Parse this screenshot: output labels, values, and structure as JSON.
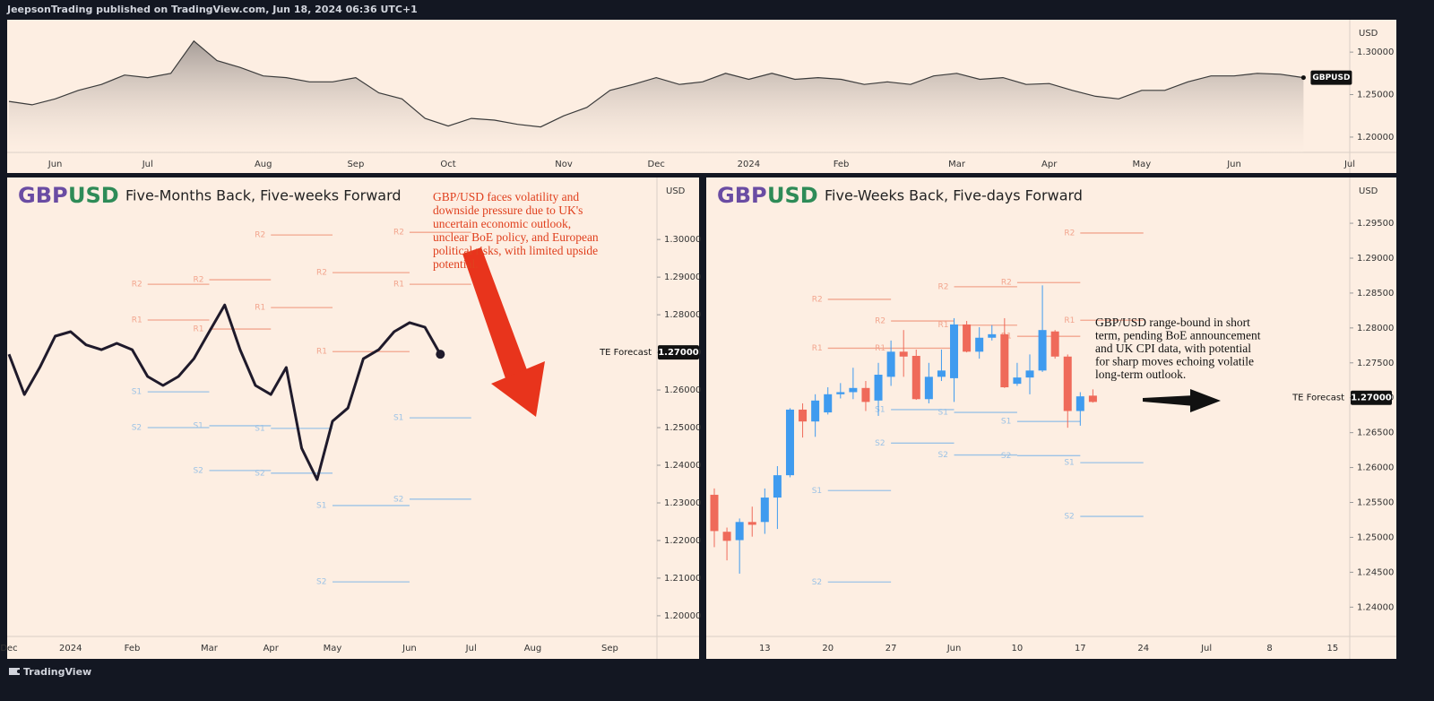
{
  "header": "JeepsonTrading published on TradingView.com, Jun 18, 2024 06:36 UTC+1",
  "footer": "TradingView",
  "chart_data": [
    {
      "type": "area",
      "symbol": "GBPUSD",
      "currency": "USD",
      "color": "#3b3b3b",
      "categories": [
        null,
        null,
        "Jun",
        null,
        null,
        null,
        "Jul",
        null,
        null,
        null,
        null,
        "Aug",
        null,
        null,
        null,
        "Sep",
        null,
        null,
        null,
        "Oct",
        null,
        null,
        null,
        null,
        "Nov",
        null,
        null,
        null,
        "Dec",
        null,
        null,
        null,
        "2024",
        null,
        null,
        null,
        "Feb",
        null,
        null,
        null,
        null,
        "Mar",
        null,
        null,
        null,
        "Apr",
        null,
        null,
        null,
        "May",
        null,
        null,
        null,
        "Jun",
        null,
        null,
        null,
        null,
        "Jul"
      ],
      "values": [
        1.242,
        1.238,
        1.245,
        1.255,
        1.262,
        1.273,
        1.27,
        1.275,
        1.313,
        1.29,
        1.282,
        1.272,
        1.27,
        1.265,
        1.265,
        1.27,
        1.252,
        1.245,
        1.222,
        1.213,
        1.222,
        1.22,
        1.215,
        1.212,
        1.225,
        1.235,
        1.255,
        1.262,
        1.27,
        1.262,
        1.265,
        1.275,
        1.268,
        1.275,
        1.268,
        1.27,
        1.268,
        1.262,
        1.265,
        1.262,
        1.272,
        1.275,
        1.268,
        1.27,
        1.262,
        1.263,
        1.255,
        1.248,
        1.245,
        1.255,
        1.255,
        1.265,
        1.272,
        1.272,
        1.275,
        1.274,
        1.27,
        null,
        null
      ],
      "ylim": [
        1.182,
        1.336
      ],
      "yticks": [
        {
          "value": 1.2,
          "label": "1.20000"
        },
        {
          "value": 1.25,
          "label": "1.25000"
        },
        {
          "value": 1.3,
          "label": "1.30000"
        }
      ]
    },
    {
      "type": "line",
      "title_base": "GBP",
      "title_quote": "USD",
      "subtitle": "Five-Months Back, Five-weeks Forward",
      "currency": "USD",
      "color": "#1f1a2b",
      "resistance_color": "#f2a58e",
      "support_color": "#9cc3e6",
      "categories": [
        "Dec",
        null,
        null,
        null,
        "2024",
        null,
        null,
        null,
        "Feb",
        null,
        null,
        null,
        null,
        "Mar",
        null,
        null,
        null,
        "Apr",
        null,
        null,
        null,
        "May",
        null,
        null,
        null,
        null,
        "Jun",
        null,
        null,
        null,
        "Jul",
        null,
        null,
        null,
        "Aug",
        null,
        null,
        null,
        null,
        "Sep",
        null,
        null,
        null
      ],
      "values": [
        1.2695,
        1.2588,
        1.266,
        1.2743,
        1.2755,
        1.272,
        1.2707,
        1.2724,
        1.2707,
        1.2636,
        1.2612,
        1.2636,
        1.2683,
        1.2755,
        1.2826,
        1.2707,
        1.2612,
        1.2588,
        1.266,
        1.2445,
        1.2362,
        1.2517,
        1.2552,
        1.2683,
        1.2707,
        1.2755,
        1.2779,
        1.2767,
        1.2695,
        null,
        null,
        null,
        null,
        null,
        null,
        null,
        null,
        null,
        null,
        null,
        null,
        null,
        null
      ],
      "ylim": [
        1.1945,
        1.316
      ],
      "yticks": [
        {
          "value": 1.2,
          "label": "1.20000"
        },
        {
          "value": 1.21,
          "label": "1.21000"
        },
        {
          "value": 1.22,
          "label": "1.22000"
        },
        {
          "value": 1.23,
          "label": "1.23000"
        },
        {
          "value": 1.24,
          "label": "1.24000"
        },
        {
          "value": 1.25,
          "label": "1.25000"
        },
        {
          "value": 1.26,
          "label": "1.26000"
        },
        {
          "value": 1.27,
          "label": "1.27000"
        },
        {
          "value": 1.28,
          "label": "1.28000"
        },
        {
          "value": 1.29,
          "label": "1.29000"
        },
        {
          "value": 1.3,
          "label": "1.30000"
        }
      ],
      "levels": [
        {
          "name": "R2",
          "value": 1.2881,
          "span": [
            9,
            13
          ]
        },
        {
          "name": "R1",
          "value": 1.2786,
          "span": [
            9,
            13
          ]
        },
        {
          "name": "S1",
          "value": 1.2595,
          "span": [
            9,
            13
          ]
        },
        {
          "name": "S2",
          "value": 1.25,
          "span": [
            9,
            13
          ]
        },
        {
          "name": "R2",
          "value": 1.2893,
          "span": [
            13,
            17
          ]
        },
        {
          "name": "R1",
          "value": 1.2762,
          "span": [
            13,
            17
          ]
        },
        {
          "name": "S1",
          "value": 1.2505,
          "span": [
            13,
            17
          ]
        },
        {
          "name": "S2",
          "value": 1.2386,
          "span": [
            13,
            17
          ]
        },
        {
          "name": "R2",
          "value": 1.3012,
          "span": [
            17,
            21
          ]
        },
        {
          "name": "R1",
          "value": 1.2819,
          "span": [
            17,
            21
          ]
        },
        {
          "name": "S1",
          "value": 1.2498,
          "span": [
            17,
            21
          ]
        },
        {
          "name": "S2",
          "value": 1.2379,
          "span": [
            17,
            21
          ]
        },
        {
          "name": "R2",
          "value": 1.2912,
          "span": [
            21,
            26
          ]
        },
        {
          "name": "R1",
          "value": 1.2702,
          "span": [
            21,
            26
          ]
        },
        {
          "name": "S1",
          "value": 1.2293,
          "span": [
            21,
            26
          ]
        },
        {
          "name": "S2",
          "value": 1.209,
          "span": [
            21,
            26
          ]
        },
        {
          "name": "R2",
          "value": 1.3019,
          "span": [
            26,
            30
          ]
        },
        {
          "name": "R1",
          "value": 1.2881,
          "span": [
            26,
            30
          ]
        },
        {
          "name": "S1",
          "value": 1.2526,
          "span": [
            26,
            30
          ]
        },
        {
          "name": "S2",
          "value": 1.231,
          "span": [
            26,
            30
          ]
        }
      ],
      "forecast": {
        "label": "TE Forecast",
        "value": 1.27,
        "value_label": "1.27000"
      },
      "annotation": [
        "GBP/USD faces volatility and",
        "downside pressure due to UK's",
        "uncertain economic outlook,",
        "unclear BoE policy, and European",
        "political risks, with limited upside",
        "potential."
      ]
    },
    {
      "type": "candlestick",
      "title_base": "GBP",
      "title_quote": "USD",
      "subtitle": "Five-Weeks Back, Five-days Forward",
      "currency": "USD",
      "up_color": "#3f9bef",
      "down_color": "#ef6a5a",
      "resistance_color": "#f2a58e",
      "support_color": "#9cc3e6",
      "categories": [
        null,
        null,
        null,
        null,
        "13",
        null,
        null,
        null,
        null,
        "20",
        null,
        null,
        null,
        null,
        "27",
        null,
        null,
        null,
        null,
        "Jun",
        null,
        null,
        null,
        null,
        "10",
        null,
        null,
        null,
        null,
        "17",
        null,
        null,
        null,
        null,
        "24",
        null,
        null,
        null,
        null,
        "Jul",
        null,
        null,
        null,
        null,
        "8",
        null,
        null,
        null,
        null,
        "15",
        null
      ],
      "open": [
        1.2561,
        1.2508,
        1.2496,
        1.2522,
        1.2522,
        1.2557,
        1.2589,
        1.2683,
        1.2666,
        1.2679,
        1.2705,
        1.2708,
        1.2714,
        1.2696,
        1.273,
        1.2766,
        1.276,
        1.2698,
        1.273,
        1.2728,
        1.2805,
        1.2766,
        1.2786,
        1.2791,
        1.272,
        1.2729,
        1.2739,
        1.2795,
        1.2759,
        1.2681,
        1.2703,
        null,
        null,
        null,
        null,
        null,
        null,
        null,
        null,
        null,
        null,
        null,
        null,
        null,
        null,
        null,
        null,
        null,
        null,
        null,
        null
      ],
      "high": [
        1.257,
        1.2514,
        1.2527,
        1.2544,
        1.257,
        1.2602,
        1.2685,
        1.2692,
        1.2705,
        1.2715,
        1.2721,
        1.2743,
        1.2724,
        1.275,
        1.2782,
        1.2797,
        1.2769,
        1.275,
        1.2769,
        1.2814,
        1.281,
        1.2801,
        1.2804,
        1.2814,
        1.275,
        1.2762,
        1.2861,
        1.2797,
        1.2762,
        1.2708,
        1.2712,
        null,
        null,
        null,
        null,
        null,
        null,
        null,
        null,
        null,
        null,
        null,
        null,
        null,
        null,
        null,
        null,
        null,
        null,
        null,
        null
      ],
      "low": [
        1.2486,
        1.2467,
        1.2448,
        1.2501,
        1.2505,
        1.2512,
        1.2586,
        1.2643,
        1.2644,
        1.2676,
        1.2699,
        1.2698,
        1.2681,
        1.2674,
        1.2717,
        1.273,
        1.2697,
        1.2692,
        1.2724,
        1.2694,
        1.2765,
        1.2756,
        1.2782,
        1.2714,
        1.2717,
        1.2705,
        1.2737,
        1.2756,
        1.2657,
        1.266,
        1.2693,
        null,
        null,
        null,
        null,
        null,
        null,
        null,
        null,
        null,
        null,
        null,
        null,
        null,
        null,
        null,
        null,
        null,
        null,
        null,
        null
      ],
      "close": [
        1.2509,
        1.2495,
        1.2522,
        1.2518,
        1.2557,
        1.2589,
        1.2683,
        1.2666,
        1.2696,
        1.2705,
        1.2708,
        1.2714,
        1.2694,
        1.2733,
        1.2766,
        1.2759,
        1.2698,
        1.273,
        1.2739,
        1.2805,
        1.2766,
        1.2786,
        1.2791,
        1.2715,
        1.2729,
        1.2739,
        1.2797,
        1.2759,
        1.2681,
        1.2702,
        1.2694,
        null,
        null,
        null,
        null,
        null,
        null,
        null,
        null,
        null,
        null,
        null,
        null,
        null,
        null,
        null,
        null,
        null,
        null,
        null,
        null
      ],
      "ylim": [
        1.2358,
        1.3013
      ],
      "yticks": [
        {
          "value": 1.24,
          "label": "1.24000"
        },
        {
          "value": 1.245,
          "label": "1.24500"
        },
        {
          "value": 1.25,
          "label": "1.25000"
        },
        {
          "value": 1.255,
          "label": "1.25500"
        },
        {
          "value": 1.26,
          "label": "1.26000"
        },
        {
          "value": 1.265,
          "label": "1.26500"
        },
        {
          "value": 1.27,
          "label": "1.27000"
        },
        {
          "value": 1.275,
          "label": "1.27500"
        },
        {
          "value": 1.28,
          "label": "1.28000"
        },
        {
          "value": 1.285,
          "label": "1.28500"
        },
        {
          "value": 1.29,
          "label": "1.29000"
        },
        {
          "value": 1.295,
          "label": "1.29500"
        }
      ],
      "levels": [
        {
          "name": "R2",
          "value": 1.2841,
          "span": [
            9,
            14
          ]
        },
        {
          "name": "R1",
          "value": 1.2771,
          "span": [
            9,
            14
          ]
        },
        {
          "name": "S1",
          "value": 1.2567,
          "span": [
            9,
            14
          ]
        },
        {
          "name": "S2",
          "value": 1.2436,
          "span": [
            9,
            14
          ]
        },
        {
          "name": "R2",
          "value": 1.281,
          "span": [
            14,
            19
          ]
        },
        {
          "name": "R1",
          "value": 1.2771,
          "span": [
            14,
            19
          ]
        },
        {
          "name": "S1",
          "value": 1.2683,
          "span": [
            14,
            19
          ]
        },
        {
          "name": "S2",
          "value": 1.2635,
          "span": [
            14,
            19
          ]
        },
        {
          "name": "R2",
          "value": 1.2859,
          "span": [
            19,
            24
          ]
        },
        {
          "name": "R1",
          "value": 1.2804,
          "span": [
            19,
            24
          ]
        },
        {
          "name": "S1",
          "value": 1.2679,
          "span": [
            19,
            24
          ]
        },
        {
          "name": "S2",
          "value": 1.2618,
          "span": [
            19,
            24
          ]
        },
        {
          "name": "R2",
          "value": 1.2865,
          "span": [
            24,
            29
          ]
        },
        {
          "name": "R1",
          "value": 1.2788,
          "span": [
            24,
            29
          ]
        },
        {
          "name": "S1",
          "value": 1.2666,
          "span": [
            24,
            29
          ]
        },
        {
          "name": "S2",
          "value": 1.2617,
          "span": [
            24,
            29
          ]
        },
        {
          "name": "R2",
          "value": 1.2936,
          "span": [
            29,
            34
          ]
        },
        {
          "name": "R1",
          "value": 1.2811,
          "span": [
            29,
            34
          ]
        },
        {
          "name": "S1",
          "value": 1.2607,
          "span": [
            29,
            34
          ]
        },
        {
          "name": "S2",
          "value": 1.253,
          "span": [
            29,
            34
          ]
        }
      ],
      "forecast": {
        "label": "TE Forecast",
        "value": 1.27,
        "value_label": "1.27000"
      },
      "annotation": [
        "GBP/USD range-bound in short",
        "term, pending BoE announcement",
        "and UK CPI data, with potential",
        "for sharp moves echoing volatile",
        "long-term outlook."
      ]
    }
  ]
}
